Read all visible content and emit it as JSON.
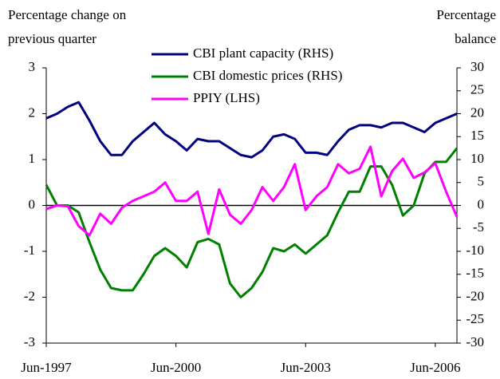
{
  "chart_data": {
    "type": "line",
    "y_label": [
      "Percentage change on",
      "previous quarter"
    ],
    "y2_label": [
      "Percentage",
      "balance"
    ],
    "categories": [
      "Jun-1997",
      null,
      null,
      null,
      null,
      null,
      null,
      null,
      null,
      null,
      null,
      null,
      "Jun-2000",
      null,
      null,
      null,
      null,
      null,
      null,
      null,
      null,
      null,
      null,
      null,
      "Jun-2003",
      null,
      null,
      null,
      null,
      null,
      null,
      null,
      null,
      null,
      null,
      null,
      "Jun-2006",
      null,
      null
    ],
    "ylim": [
      -3,
      3
    ],
    "yticks": [
      -3,
      -2,
      -1,
      0,
      1,
      2,
      3
    ],
    "y2lim": [
      -30,
      30
    ],
    "y2ticks": [
      -30,
      -25,
      -20,
      -15,
      -10,
      -5,
      0,
      5,
      10,
      15,
      20,
      25,
      30
    ],
    "zero_line": true,
    "legend": "top",
    "series": [
      {
        "name": "CBI plant capacity (RHS)",
        "color": "#000080",
        "axis": "y2",
        "values": [
          19,
          20,
          21.5,
          22.5,
          18.5,
          14,
          11,
          11,
          14,
          16,
          18,
          15.5,
          14,
          12,
          14.5,
          14,
          14,
          12.5,
          11,
          10.5,
          12,
          15,
          15.5,
          14.5,
          11.5,
          11.5,
          11,
          14,
          16.5,
          17.5,
          17.5,
          17,
          18,
          18,
          17,
          16,
          18,
          19,
          20
        ]
      },
      {
        "name": "CBI domestic prices (RHS)",
        "color": "#008000",
        "axis": "y2",
        "values": [
          4.5,
          0,
          0,
          -1.5,
          -8,
          -14,
          -18,
          -18.5,
          -18.5,
          -15,
          -11,
          -9.3,
          -11,
          -13.5,
          -8,
          -7.3,
          -8.5,
          -17,
          -20,
          -18,
          -14.5,
          -9.3,
          -10,
          -8.5,
          -10.5,
          -8.5,
          -6.5,
          -1.5,
          3,
          3,
          8.5,
          8.5,
          4.5,
          -2.2,
          0,
          7,
          9.5,
          9.5,
          12.5
        ]
      },
      {
        "name": "PPIY (LHS)",
        "color": "#ff00ff",
        "values": [
          -0.08,
          0,
          -0.02,
          -0.45,
          -0.65,
          -0.18,
          -0.4,
          -0.05,
          0.1,
          0.2,
          0.3,
          0.5,
          0.1,
          0.1,
          0.3,
          -0.62,
          0.35,
          -0.2,
          -0.4,
          -0.1,
          0.4,
          0.1,
          0.4,
          0.9,
          -0.1,
          0.2,
          0.4,
          0.9,
          0.7,
          0.8,
          1.28,
          0.2,
          0.75,
          1.02,
          0.6,
          0.72,
          0.92,
          0.3,
          -0.25
        ]
      }
    ]
  }
}
